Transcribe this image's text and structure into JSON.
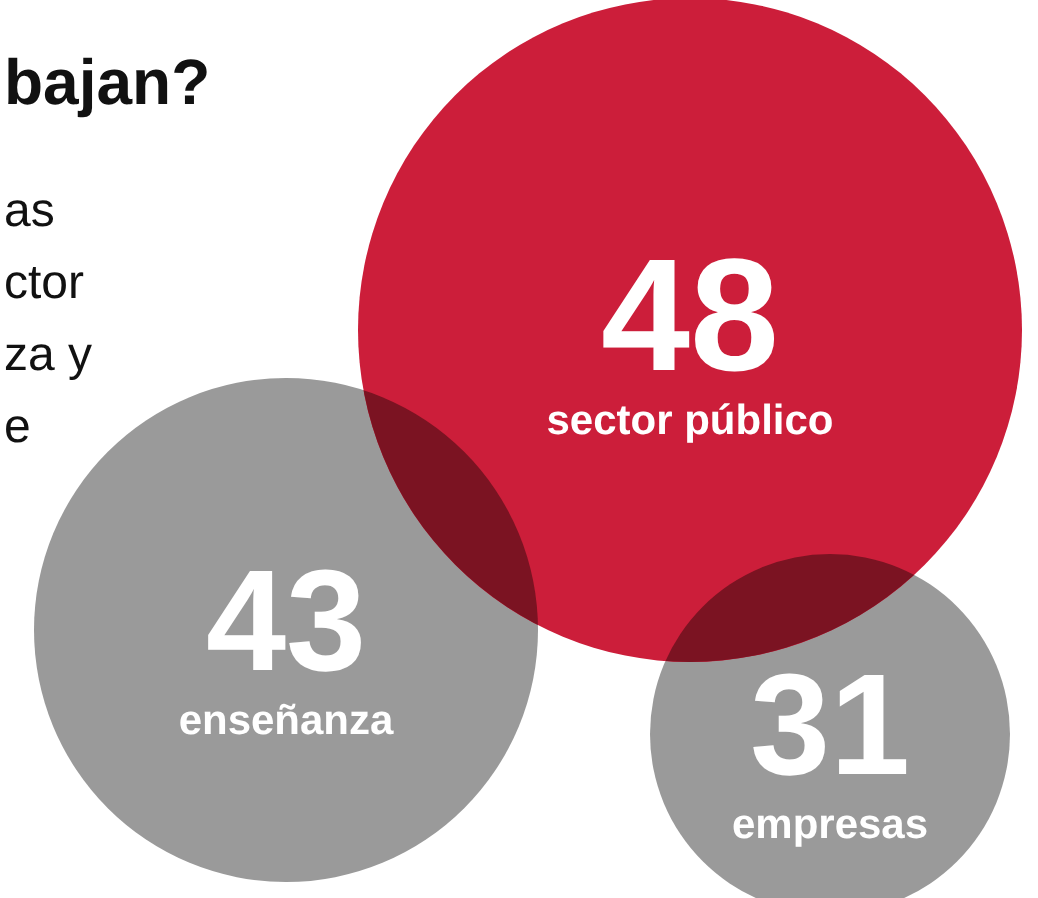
{
  "chart_data": {
    "type": "other",
    "title": "bajan?",
    "annotations": [
      "as",
      "ctor",
      "za y",
      "e"
    ],
    "categories": [
      "sector público",
      "enseñanza",
      "empresas"
    ],
    "values": [
      48,
      43,
      31
    ],
    "colors": [
      "#cc1e3a",
      "#9a9a9a",
      "#9a9a9a"
    ],
    "data_labels": true
  }
}
